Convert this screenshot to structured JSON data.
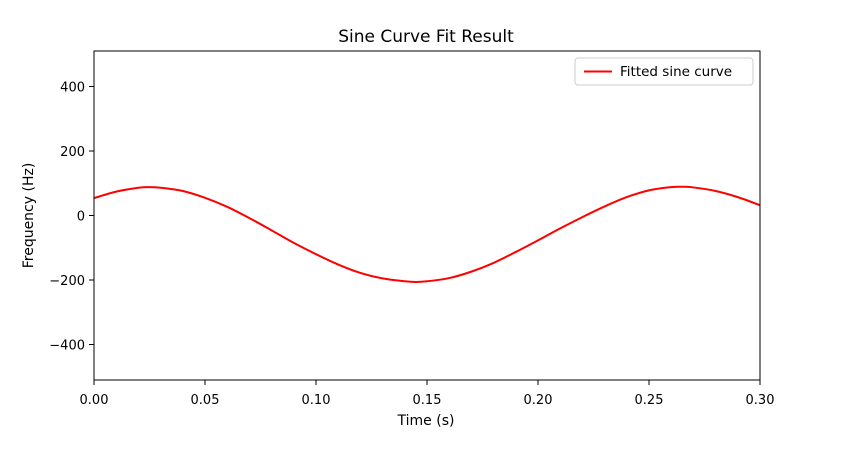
{
  "chart_data": {
    "type": "line",
    "title": "Sine Curve Fit Result",
    "xlabel": "Time (s)",
    "ylabel": "Frequency (Hz)",
    "xlim": [
      0.0,
      0.3
    ],
    "ylim": [
      -510,
      510
    ],
    "grid": false,
    "legend_position": "top-right",
    "x_ticks": [
      0.0,
      0.05,
      0.1,
      0.15,
      0.2,
      0.25,
      0.3
    ],
    "x_tick_labels": [
      "0.00",
      "0.05",
      "0.10",
      "0.15",
      "0.20",
      "0.25",
      "0.30"
    ],
    "y_ticks": [
      -400,
      -200,
      0,
      200,
      400
    ],
    "y_tick_labels": [
      "−400",
      "−200",
      "0",
      "200",
      "400"
    ],
    "series": [
      {
        "name": "Fitted sine curve",
        "color": "#ff0000",
        "x": [
          0.0,
          0.01,
          0.02,
          0.025,
          0.03,
          0.04,
          0.05,
          0.06,
          0.07,
          0.08,
          0.09,
          0.1,
          0.11,
          0.12,
          0.13,
          0.14,
          0.145,
          0.15,
          0.16,
          0.17,
          0.18,
          0.19,
          0.2,
          0.21,
          0.22,
          0.23,
          0.24,
          0.25,
          0.26,
          0.265,
          0.27,
          0.28,
          0.29,
          0.3
        ],
        "y": [
          54,
          74,
          86,
          88,
          86,
          76,
          55,
          27,
          -8,
          -46,
          -85,
          -120,
          -152,
          -178,
          -195,
          -204,
          -206,
          -204,
          -194,
          -174,
          -147,
          -113,
          -77,
          -40,
          -5,
          28,
          57,
          78,
          88,
          89,
          87,
          76,
          57,
          32
        ]
      }
    ]
  }
}
